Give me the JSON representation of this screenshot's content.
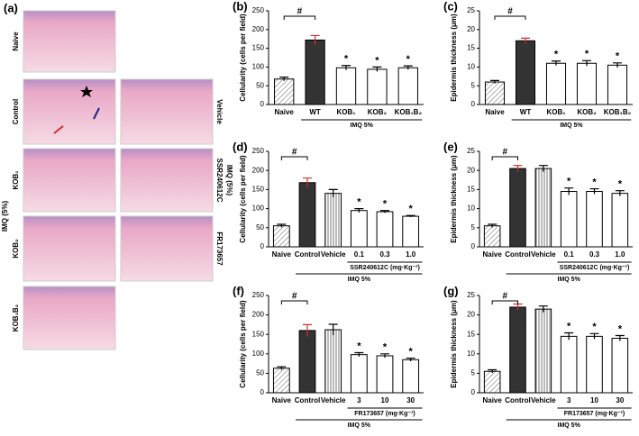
{
  "histology": {
    "panel_label": "(a)",
    "row_labels": [
      "Naive",
      "Control",
      "KOB₁",
      "KOB₂",
      "KOB₁B₂"
    ],
    "right_labels": [
      "Vehicle",
      "SSR240612C",
      "FR173657"
    ],
    "group_left": "IMQ (5%)",
    "group_right": "IMQ (5%)"
  },
  "chart_data": [
    {
      "type": "bar",
      "panel_label": "(b)",
      "ylabel": "Cellularity (cells per field)",
      "categories": [
        "Naive",
        "WT",
        "KOB₁",
        "KOB₂",
        "KOB₁B₂"
      ],
      "values": [
        68,
        172,
        98,
        94,
        98
      ],
      "errors": [
        5,
        12,
        6,
        6,
        5
      ],
      "bar_styles": [
        "hatched",
        "dark",
        "white",
        "white",
        "white"
      ],
      "ylim": [
        0,
        250
      ],
      "yticks": [
        0,
        50,
        100,
        150,
        200,
        250
      ],
      "hash": "#",
      "hash_between": [
        0,
        1
      ],
      "star": "*",
      "star_categories": [
        2,
        3,
        4
      ],
      "groups": [
        {
          "label": "IMQ 5%",
          "from": 1,
          "to": 4
        }
      ]
    },
    {
      "type": "bar",
      "panel_label": "(c)",
      "ylabel": "Epidermis thickness (μm)",
      "categories": [
        "Naive",
        "WT",
        "KOB₁",
        "KOB₂",
        "KOB₁B₂"
      ],
      "values": [
        6,
        17,
        11,
        11,
        10.5
      ],
      "errors": [
        0.4,
        0.7,
        0.6,
        0.7,
        0.6
      ],
      "bar_styles": [
        "hatched",
        "dark",
        "white",
        "white",
        "white"
      ],
      "ylim": [
        0,
        25
      ],
      "yticks": [
        0,
        5,
        10,
        15,
        20,
        25
      ],
      "hash": "#",
      "hash_between": [
        0,
        1
      ],
      "star": "*",
      "star_categories": [
        2,
        3,
        4
      ],
      "groups": [
        {
          "label": "IMQ 5%",
          "from": 1,
          "to": 4
        }
      ]
    },
    {
      "type": "bar",
      "panel_label": "(d)",
      "ylabel": "Cellularity (cells per field)",
      "categories": [
        "Naive",
        "Control",
        "Vehicle",
        "0.1",
        "0.3",
        "1.0"
      ],
      "values": [
        55,
        168,
        140,
        95,
        92,
        80
      ],
      "errors": [
        4,
        12,
        10,
        5,
        3,
        2
      ],
      "bar_styles": [
        "hatched",
        "dark",
        "striped",
        "white",
        "white",
        "white"
      ],
      "ylim": [
        0,
        250
      ],
      "yticks": [
        0,
        50,
        100,
        150,
        200,
        250
      ],
      "hash": "#",
      "hash_between": [
        0,
        1
      ],
      "star": "*",
      "star_categories": [
        3,
        4,
        5
      ],
      "groups": [
        {
          "label": "SSR240612C (mg·Kg⁻¹)",
          "from": 3,
          "to": 5
        },
        {
          "label": "IMQ 5%",
          "from": 1,
          "to": 5
        }
      ]
    },
    {
      "type": "bar",
      "panel_label": "(e)",
      "ylabel": "Epidermis thickness (μm)",
      "categories": [
        "Naive",
        "Control",
        "Vehicle",
        "0.1",
        "0.3",
        "1.0"
      ],
      "values": [
        5.5,
        20.5,
        20.5,
        14.5,
        14.5,
        14
      ],
      "errors": [
        0.4,
        0.8,
        0.8,
        0.9,
        0.7,
        0.7
      ],
      "bar_styles": [
        "hatched",
        "dark",
        "striped",
        "white",
        "white",
        "white"
      ],
      "ylim": [
        0,
        25
      ],
      "yticks": [
        0,
        5,
        10,
        15,
        20,
        25
      ],
      "hash": "#",
      "hash_between": [
        0,
        1
      ],
      "star": "*",
      "star_categories": [
        3,
        4,
        5
      ],
      "groups": [
        {
          "label": "SSR240612C (mg·Kg⁻¹)",
          "from": 3,
          "to": 5
        },
        {
          "label": "IMQ 5%",
          "from": 1,
          "to": 5
        }
      ]
    },
    {
      "type": "bar",
      "panel_label": "(f)",
      "ylabel": "Cellularity (cells per field)",
      "categories": [
        "Naive",
        "Control",
        "Vehicle",
        "3",
        "10",
        "30"
      ],
      "values": [
        63,
        160,
        162,
        98,
        95,
        85
      ],
      "errors": [
        4,
        15,
        14,
        5,
        5,
        4
      ],
      "bar_styles": [
        "hatched",
        "dark",
        "striped",
        "white",
        "white",
        "white"
      ],
      "ylim": [
        0,
        250
      ],
      "yticks": [
        0,
        50,
        100,
        150,
        200,
        250
      ],
      "hash": "#",
      "hash_between": [
        0,
        1
      ],
      "star": "*",
      "star_categories": [
        3,
        4,
        5
      ],
      "groups": [
        {
          "label": "FR173657 (mg·Kg⁻¹)",
          "from": 3,
          "to": 5
        },
        {
          "label": "IMQ 5%",
          "from": 1,
          "to": 5
        }
      ]
    },
    {
      "type": "bar",
      "panel_label": "(g)",
      "ylabel": "Epidermis thickness (μm)",
      "categories": [
        "Naive",
        "Control",
        "Vehicle",
        "3",
        "10",
        "30"
      ],
      "values": [
        5.5,
        22,
        21.5,
        14.5,
        14.5,
        14
      ],
      "errors": [
        0.4,
        0.8,
        0.8,
        0.9,
        0.7,
        0.7
      ],
      "bar_styles": [
        "hatched",
        "dark",
        "striped",
        "white",
        "white",
        "white"
      ],
      "ylim": [
        0,
        25
      ],
      "yticks": [
        0,
        5,
        10,
        15,
        20,
        25
      ],
      "hash": "#",
      "hash_between": [
        0,
        1
      ],
      "star": "*",
      "star_categories": [
        3,
        4,
        5
      ],
      "groups": [
        {
          "label": "FR173657 (mg·Kg⁻¹)",
          "from": 3,
          "to": 5
        },
        {
          "label": "IMQ 5%",
          "from": 1,
          "to": 5
        }
      ]
    }
  ]
}
